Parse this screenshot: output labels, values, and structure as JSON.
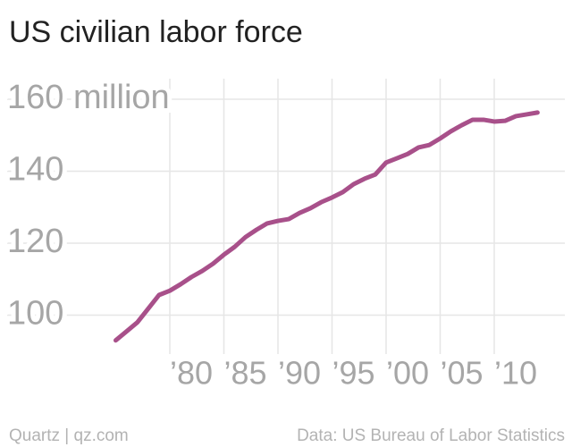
{
  "chart_data": {
    "type": "line",
    "title": "US civilian labor force",
    "x": [
      1975,
      1976,
      1977,
      1978,
      1979,
      1980,
      1981,
      1982,
      1983,
      1984,
      1985,
      1986,
      1987,
      1988,
      1989,
      1990,
      1991,
      1992,
      1993,
      1994,
      1995,
      1996,
      1997,
      1998,
      1999,
      2000,
      2001,
      2002,
      2003,
      2004,
      2005,
      2006,
      2007,
      2008,
      2009,
      2010,
      2011,
      2012,
      2013,
      2014
    ],
    "values": [
      93,
      95.5,
      98,
      101.8,
      105.6,
      106.8,
      108.6,
      110.6,
      112.3,
      114.3,
      116.8,
      119,
      121.7,
      123.7,
      125.5,
      126.2,
      126.7,
      128.4,
      129.7,
      131.4,
      132.7,
      134.2,
      136.4,
      137.9,
      139.1,
      142.4,
      143.6,
      144.8,
      146.6,
      147.3,
      149.1,
      151.1,
      152.8,
      154.3,
      154.3,
      153.8,
      154,
      155.3,
      155.8,
      156.3
    ],
    "color": "#a8508a",
    "xlim": [
      1974,
      2015
    ],
    "xticks": [
      {
        "value": 1980,
        "label": "’80"
      },
      {
        "value": 1985,
        "label": "’85"
      },
      {
        "value": 1990,
        "label": "’90"
      },
      {
        "value": 1995,
        "label": "’95"
      },
      {
        "value": 2000,
        "label": "’00"
      },
      {
        "value": 2005,
        "label": "’05"
      },
      {
        "value": 2010,
        "label": "’10"
      }
    ],
    "ylim": [
      90,
      160
    ],
    "yticks": [
      100,
      120,
      140,
      {
        "value": 160,
        "label": "160 million"
      }
    ],
    "grid": true,
    "source_left": "Quartz | qz.com",
    "source_right": "Data: US Bureau of Labor Statistics"
  }
}
